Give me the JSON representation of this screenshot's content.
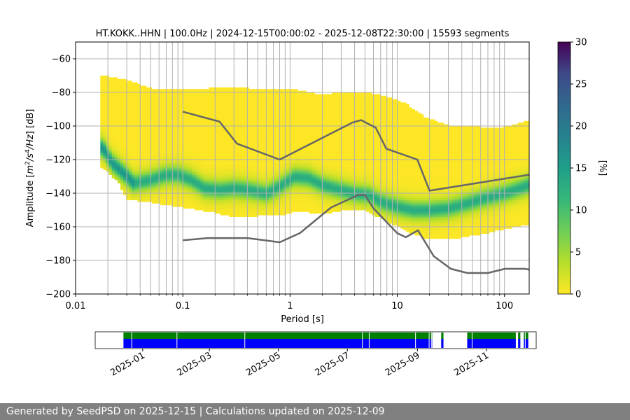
{
  "chart_data": {
    "type": "heatmap",
    "title": "HT.KOKK..HHN | 100.0Hz | 2024-12-15T00:00:02 - 2025-12-08T22:30:00 | 15593 segments",
    "xlabel": "Period [s]",
    "ylabel_parts": [
      "Amplitude [",
      "m",
      "2",
      "/",
      "s",
      "4",
      "/Hz",
      "] [dB]"
    ],
    "x_scale": "log",
    "xlim": [
      0.01,
      170
    ],
    "ylim": [
      -200,
      -50
    ],
    "x_ticks": [
      {
        "value": 0.01,
        "label": "0.01"
      },
      {
        "value": 0.1,
        "label": "0.1"
      },
      {
        "value": 1,
        "label": "1"
      },
      {
        "value": 10,
        "label": "10"
      },
      {
        "value": 100,
        "label": "100"
      }
    ],
    "y_ticks": [
      {
        "value": -60,
        "label": "−60"
      },
      {
        "value": -80,
        "label": "−80"
      },
      {
        "value": -100,
        "label": "−100"
      },
      {
        "value": -120,
        "label": "−120"
      },
      {
        "value": -140,
        "label": "−140"
      },
      {
        "value": -160,
        "label": "−160"
      },
      {
        "value": -180,
        "label": "−180"
      },
      {
        "value": -200,
        "label": "−200"
      }
    ],
    "colorbar": {
      "label": "[%]",
      "range": [
        0,
        30
      ],
      "ticks": [
        {
          "value": 0,
          "label": "0"
        },
        {
          "value": 5,
          "label": "5"
        },
        {
          "value": 10,
          "label": "10"
        },
        {
          "value": 15,
          "label": "15"
        },
        {
          "value": 20,
          "label": "20"
        },
        {
          "value": 25,
          "label": "25"
        },
        {
          "value": 30,
          "label": "30"
        }
      ],
      "colormap": "viridis_r"
    },
    "nhnm": {
      "x": [
        0.1,
        0.22,
        0.32,
        0.8,
        3.8,
        4.6,
        6.3,
        7.9,
        15.4,
        20,
        170
      ],
      "y": [
        -91.5,
        -97.4,
        -110.5,
        -120,
        -98,
        -96.5,
        -101,
        -113.5,
        -120,
        -138.5,
        -129
      ]
    },
    "nlnm": {
      "x": [
        0.1,
        0.17,
        0.4,
        0.8,
        1.24,
        2.4,
        4.3,
        5,
        6,
        10,
        12,
        15.6,
        21.9,
        31.6,
        45,
        70,
        101,
        154,
        170
      ],
      "y": [
        -168,
        -166.7,
        -166.7,
        -169.2,
        -163.7,
        -148.6,
        -141.1,
        -141.1,
        -149,
        -163.8,
        -166.2,
        -162.1,
        -177.5,
        -185,
        -187.5,
        -187.5,
        -185,
        -185,
        -185.5
      ]
    },
    "mode": {
      "x": [
        0.018,
        0.022,
        0.028,
        0.035,
        0.05,
        0.07,
        0.09,
        0.12,
        0.16,
        0.22,
        0.3,
        0.42,
        0.6,
        0.8,
        1.1,
        1.5,
        2,
        3,
        4,
        5.5,
        7,
        10,
        14,
        20,
        30,
        45,
        65,
        100,
        170
      ],
      "y": [
        -113,
        -122,
        -128,
        -134,
        -132,
        -129,
        -129,
        -132,
        -137,
        -138,
        -137,
        -138,
        -140,
        -136,
        -130,
        -131,
        -135,
        -138,
        -140,
        -141,
        -145,
        -148,
        -150,
        -150,
        -149,
        -146,
        -143,
        -140,
        -135
      ]
    },
    "upper_edge": {
      "x": [
        0.017,
        0.03,
        0.05,
        0.1,
        0.3,
        0.6,
        1,
        2,
        3,
        5,
        8,
        12,
        18,
        30,
        60,
        100,
        170
      ],
      "y": [
        -70,
        -73,
        -78,
        -79,
        -77,
        -79,
        -78,
        -82,
        -80,
        -80,
        -83,
        -87,
        -95,
        -100,
        -101,
        -101,
        -97
      ]
    },
    "lower_edge": {
      "x": [
        0.017,
        0.02,
        0.025,
        0.03,
        0.05,
        0.1,
        0.2,
        0.3,
        0.5,
        0.8,
        1.2,
        2,
        3,
        5,
        8,
        12,
        20,
        40,
        70,
        120,
        170
      ],
      "y": [
        -124,
        -127,
        -133,
        -143,
        -145,
        -148,
        -151,
        -154,
        -153,
        -153,
        -150,
        -152,
        -150,
        -150,
        -156,
        -162,
        -167,
        -166,
        -163,
        -160,
        -158
      ]
    },
    "timeline": {
      "date_ticks": [
        {
          "date": "2025-01-01",
          "label": "2025-01"
        },
        {
          "date": "2025-03-01",
          "label": "2025-03"
        },
        {
          "date": "2025-05-01",
          "label": "2025-05"
        },
        {
          "date": "2025-07-01",
          "label": "2025-07"
        },
        {
          "date": "2025-09-01",
          "label": "2025-09"
        },
        {
          "date": "2025-11-01",
          "label": "2025-11"
        }
      ],
      "range": [
        "2024-11-20",
        "2025-12-15"
      ],
      "data_color": "#008000",
      "used_color": "#0000ff",
      "coverage": [
        [
          "2024-12-15",
          "2025-09-14"
        ],
        [
          "2025-09-22",
          "2025-09-24"
        ],
        [
          "2025-10-15",
          "2025-11-27"
        ],
        [
          "2025-11-29",
          "2025-12-01"
        ],
        [
          "2025-12-04",
          "2025-12-08"
        ]
      ],
      "gaps": [
        "2024-12-22",
        "2025-01-31",
        "2025-04-01",
        "2025-07-14",
        "2025-07-20",
        "2025-08-30",
        "2025-09-11",
        "2025-09-13",
        "2025-10-19",
        "2025-12-05"
      ]
    }
  },
  "footer": {
    "text": "Generated by SeedPSD on 2025-12-15 | Calculations updated on 2025-12-09"
  }
}
